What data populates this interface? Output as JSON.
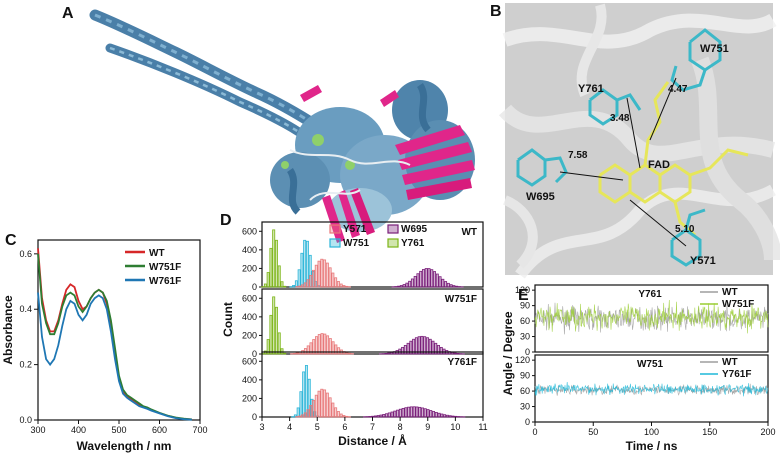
{
  "panels": {
    "A": {
      "letter": "A"
    },
    "B": {
      "letter": "B",
      "residue_labels": [
        "W751",
        "Y761",
        "FAD",
        "W695",
        "Y571"
      ],
      "distances": [
        "4.47",
        "3.48",
        "7.58",
        "5.10"
      ]
    },
    "C": {
      "letter": "C"
    },
    "D": {
      "letter": "D"
    },
    "E": {
      "letter": "E"
    }
  },
  "chart_data": [
    {
      "id": "C",
      "type": "line",
      "xlabel": "Wavelength / nm",
      "ylabel": "Absorbance",
      "xlim": [
        300,
        700
      ],
      "ylim": [
        0,
        0.65
      ],
      "xticks": [
        "300",
        "400",
        "500",
        "600",
        "700"
      ],
      "yticks": [
        "0.0",
        "0.2",
        "0.4",
        "0.6"
      ],
      "legend_position": "top-right",
      "series": [
        {
          "name": "WT",
          "color": "#d62728",
          "x": [
            300,
            310,
            320,
            330,
            340,
            350,
            360,
            370,
            380,
            390,
            400,
            410,
            420,
            430,
            440,
            450,
            460,
            470,
            480,
            490,
            500,
            510,
            520,
            530,
            540,
            550,
            560,
            570,
            580,
            600,
            620,
            640,
            660,
            680
          ],
          "y": [
            0.62,
            0.44,
            0.36,
            0.32,
            0.32,
            0.36,
            0.42,
            0.47,
            0.49,
            0.48,
            0.43,
            0.4,
            0.41,
            0.44,
            0.46,
            0.47,
            0.46,
            0.42,
            0.34,
            0.24,
            0.15,
            0.1,
            0.085,
            0.075,
            0.065,
            0.055,
            0.048,
            0.042,
            0.036,
            0.025,
            0.015,
            0.008,
            0.004,
            0.002
          ]
        },
        {
          "name": "W751F",
          "color": "#2e7d32",
          "x": [
            300,
            310,
            320,
            330,
            340,
            350,
            360,
            370,
            380,
            390,
            400,
            410,
            420,
            430,
            440,
            450,
            460,
            470,
            480,
            490,
            500,
            510,
            520,
            530,
            540,
            550,
            560,
            570,
            580,
            600,
            620,
            640,
            660,
            680
          ],
          "y": [
            0.6,
            0.42,
            0.35,
            0.31,
            0.31,
            0.35,
            0.41,
            0.45,
            0.46,
            0.45,
            0.41,
            0.39,
            0.41,
            0.44,
            0.46,
            0.47,
            0.46,
            0.43,
            0.36,
            0.26,
            0.16,
            0.11,
            0.09,
            0.08,
            0.07,
            0.06,
            0.05,
            0.045,
            0.038,
            0.026,
            0.016,
            0.009,
            0.005,
            0.002
          ]
        },
        {
          "name": "W761F",
          "color": "#1f77b4",
          "x": [
            300,
            310,
            320,
            330,
            340,
            350,
            360,
            370,
            380,
            390,
            400,
            410,
            420,
            430,
            440,
            450,
            460,
            470,
            480,
            490,
            500,
            510,
            520,
            530,
            540,
            550,
            560,
            570,
            580,
            600,
            620,
            640,
            660,
            680
          ],
          "y": [
            0.46,
            0.3,
            0.22,
            0.2,
            0.22,
            0.27,
            0.34,
            0.4,
            0.43,
            0.42,
            0.38,
            0.36,
            0.38,
            0.42,
            0.44,
            0.45,
            0.44,
            0.4,
            0.32,
            0.22,
            0.14,
            0.095,
            0.08,
            0.07,
            0.06,
            0.05,
            0.045,
            0.04,
            0.034,
            0.024,
            0.014,
            0.007,
            0.003,
            0.001
          ]
        }
      ]
    },
    {
      "id": "D",
      "type": "bar",
      "xlabel": "Distance / Å",
      "ylabel": "Count",
      "xlim": [
        3,
        11
      ],
      "ylim": [
        0,
        700
      ],
      "xticks": [
        "3",
        "4",
        "5",
        "6",
        "7",
        "8",
        "9",
        "10",
        "11"
      ],
      "yticks": [
        "0",
        "200",
        "400",
        "600"
      ],
      "legend": [
        {
          "name": "Y571",
          "color": "#e8797a"
        },
        {
          "name": "W695",
          "color": "#7a1f7a"
        },
        {
          "name": "W751",
          "color": "#2bb5d8"
        },
        {
          "name": "Y761",
          "color": "#7cb518"
        }
      ],
      "subplots": [
        {
          "label": "WT",
          "distributions": [
            {
              "name": "Y761",
              "center": 3.45,
              "sd": 0.13,
              "peak": 620
            },
            {
              "name": "W751",
              "center": 4.6,
              "sd": 0.17,
              "peak": 520
            },
            {
              "name": "Y571",
              "center": 5.2,
              "sd": 0.32,
              "peak": 300
            },
            {
              "name": "W695",
              "center": 9.0,
              "sd": 0.42,
              "peak": 200
            }
          ]
        },
        {
          "label": "W751F",
          "distributions": [
            {
              "name": "Y761",
              "center": 3.45,
              "sd": 0.13,
              "peak": 620
            },
            {
              "name": "Y571",
              "center": 5.2,
              "sd": 0.38,
              "peak": 220
            },
            {
              "name": "W695",
              "center": 8.8,
              "sd": 0.5,
              "peak": 190
            }
          ]
        },
        {
          "label": "Y761F",
          "distributions": [
            {
              "name": "W751",
              "center": 4.6,
              "sd": 0.15,
              "peak": 560
            },
            {
              "name": "Y571",
              "center": 5.2,
              "sd": 0.32,
              "peak": 300
            },
            {
              "name": "W695",
              "center": 8.5,
              "sd": 0.65,
              "peak": 110
            }
          ]
        }
      ]
    },
    {
      "id": "E",
      "type": "line",
      "xlabel": "Time / ns",
      "ylabel": "Angle / Degree",
      "xlim": [
        0,
        200
      ],
      "xticks": [
        "0",
        "50",
        "100",
        "150",
        "200"
      ],
      "subplots": [
        {
          "label": "Y761",
          "ylim": [
            0,
            130
          ],
          "yticks": [
            "0",
            "30",
            "60",
            "90",
            "120"
          ],
          "series": [
            {
              "name": "WT",
              "color": "#9e9e9e",
              "mean": 65,
              "noise": 18
            },
            {
              "name": "W751F",
              "color": "#9acd32",
              "mean": 68,
              "noise": 20
            }
          ]
        },
        {
          "label": "W751",
          "ylim": [
            0,
            130
          ],
          "yticks": [
            "0",
            "30",
            "60",
            "90",
            "120"
          ],
          "series": [
            {
              "name": "WT",
              "color": "#9e9e9e",
              "mean": 62,
              "noise": 8
            },
            {
              "name": "Y761F",
              "color": "#1fb8d8",
              "mean": 64,
              "noise": 9
            }
          ]
        }
      ]
    }
  ]
}
